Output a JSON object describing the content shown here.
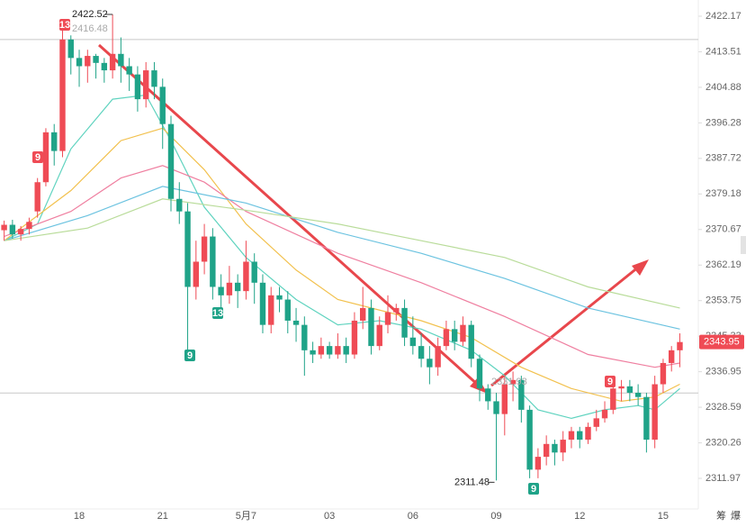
{
  "chart_data": {
    "type": "candlestick",
    "log_scale": true,
    "ylim": [
      2304.85,
      2426.13
    ],
    "yticks": [
      2311.97,
      2320.26,
      2328.59,
      2336.95,
      2345.33,
      2353.75,
      2362.19,
      2370.67,
      2379.18,
      2387.72,
      2396.28,
      2404.88,
      2413.51,
      2422.17
    ],
    "up_color": "#ef4b55",
    "down_color": "#1fa388",
    "categories": [
      null,
      null,
      null,
      null,
      null,
      null,
      null,
      null,
      null,
      "18",
      null,
      null,
      null,
      null,
      null,
      null,
      null,
      null,
      null,
      "21",
      null,
      null,
      null,
      null,
      null,
      null,
      null,
      null,
      null,
      "5月7",
      null,
      null,
      null,
      null,
      null,
      null,
      null,
      null,
      null,
      "03",
      null,
      null,
      null,
      null,
      null,
      null,
      null,
      null,
      null,
      "06",
      null,
      null,
      null,
      null,
      null,
      null,
      null,
      null,
      null,
      "09",
      null,
      null,
      null,
      null,
      null,
      null,
      null,
      null,
      null,
      "12",
      null,
      null,
      null,
      null,
      null,
      null,
      null,
      null,
      null,
      "15",
      null,
      null
    ],
    "open": [
      2370.5,
      2371.8,
      2369.5,
      2370.8,
      2375,
      2382,
      2394,
      2389.5,
      2416.5,
      2412,
      2410,
      2412.5,
      2410.8,
      2409,
      2413,
      2410,
      2408,
      2402,
      2409,
      2405,
      2396,
      2378,
      2375,
      2357,
      2363,
      2369,
      2357,
      2355,
      2358,
      2356,
      2363,
      2358,
      2348,
      2355,
      2354,
      2349,
      2348,
      2342,
      2341,
      2343,
      2341,
      2343,
      2341,
      2349,
      2352,
      2343,
      2348,
      2351,
      2352,
      2345,
      2343,
      2340,
      2338,
      2343,
      2347,
      2344,
      2348,
      2340,
      2333,
      2330,
      2327,
      2334,
      2335,
      2328,
      2314,
      2317,
      2320,
      2318,
      2321,
      2323,
      2321,
      2324,
      2326,
      2328,
      2333,
      2333.5,
      2332,
      2331,
      2321,
      2334,
      2339,
      2342
    ],
    "high": [
      2372.8,
      2373,
      2371.5,
      2373.5,
      2383,
      2395,
      2396,
      2419.5,
      2417.5,
      2414,
      2414,
      2413,
      2412,
      2422.52,
      2417,
      2412,
      2410,
      2411,
      2411,
      2407,
      2398,
      2382,
      2377,
      2368,
      2372,
      2371,
      2360,
      2362,
      2360,
      2368,
      2365,
      2360,
      2357,
      2357,
      2356,
      2352,
      2350,
      2344,
      2345,
      2344,
      2346,
      2345,
      2351,
      2357,
      2354,
      2350,
      2355,
      2353,
      2354,
      2350,
      2346,
      2343,
      2345,
      2349,
      2349,
      2350,
      2349,
      2341,
      2334,
      2332,
      2336,
      2337,
      2336,
      2329,
      2319,
      2322,
      2321,
      2323,
      2324,
      2324,
      2325,
      2328,
      2330,
      2335,
      2335,
      2335,
      2334,
      2332,
      2336,
      2340,
      2343,
      2346
    ],
    "low": [
      2368,
      2368.5,
      2368,
      2369.5,
      2373.5,
      2381,
      2386,
      2388,
      2408,
      2405,
      2406,
      2407,
      2406,
      2407,
      2406,
      2404,
      2399,
      2400,
      2402,
      2390,
      2375,
      2372,
      2341,
      2354,
      2360,
      2354,
      2352,
      2353,
      2352,
      2354,
      2353,
      2346,
      2346,
      2351,
      2346,
      2344,
      2336,
      2339,
      2340,
      2340,
      2340,
      2339,
      2340,
      2347,
      2341,
      2342,
      2346,
      2349,
      2343,
      2341,
      2338,
      2334,
      2336,
      2342,
      2342,
      2343,
      2338,
      2330,
      2328,
      2311.48,
      2322,
      2330,
      2325,
      2312,
      2312,
      2315,
      2315,
      2316,
      2319,
      2319,
      2320,
      2323,
      2325,
      2327,
      2330,
      2330,
      2329,
      2318,
      2319,
      2332,
      2337,
      2338
    ],
    "close": [
      2371.8,
      2369.5,
      2370.8,
      2372.5,
      2382,
      2394,
      2389.5,
      2416.5,
      2412,
      2410,
      2412.5,
      2410.8,
      2409,
      2413,
      2410,
      2408,
      2402,
      2409,
      2405,
      2396,
      2378,
      2375,
      2357,
      2363,
      2369,
      2357,
      2355,
      2358,
      2356,
      2363,
      2358,
      2348,
      2355,
      2354,
      2349,
      2348,
      2342,
      2341,
      2343,
      2341,
      2343,
      2341,
      2349,
      2352,
      2343,
      2348,
      2351,
      2352,
      2345,
      2343,
      2340,
      2338,
      2343,
      2347,
      2344,
      2348,
      2340,
      2333,
      2330,
      2327,
      2334,
      2335,
      2328,
      2314,
      2317,
      2320,
      2318,
      2321,
      2323,
      2321,
      2324,
      2326,
      2328,
      2333,
      2333.5,
      2332,
      2331,
      2321,
      2334,
      2339,
      2342,
      2343.95
    ],
    "ma_lines": [
      {
        "color": "#5fd3bf",
        "x": [
          0,
          4,
          8,
          13,
          17,
          20,
          24,
          29,
          35,
          40,
          45,
          50,
          56,
          60,
          64,
          68,
          72,
          76,
          78,
          81
        ],
        "values": [
          2368,
          2372,
          2390,
          2402,
          2403,
          2392,
          2376,
          2364,
          2354,
          2348,
          2349,
          2347,
          2342,
          2336,
          2328,
          2326,
          2328,
          2329,
          2328,
          2333
        ]
      },
      {
        "color": "#f2c14e",
        "x": [
          0,
          8,
          14,
          19,
          24,
          29,
          35,
          40,
          50,
          56,
          62,
          68,
          74,
          78,
          81
        ],
        "values": [
          2368,
          2380,
          2392,
          2395,
          2385,
          2372,
          2361,
          2354,
          2349,
          2345,
          2338,
          2333,
          2330,
          2331,
          2334
        ]
      },
      {
        "color": "#ef7fa0",
        "x": [
          0,
          8,
          14,
          19,
          24,
          29,
          40,
          50,
          60,
          70,
          78,
          81
        ],
        "values": [
          2369,
          2375,
          2383,
          2386,
          2382,
          2375,
          2365,
          2358,
          2350,
          2341,
          2338,
          2339
        ]
      },
      {
        "color": "#6cc3e0",
        "x": [
          0,
          10,
          19,
          29,
          40,
          50,
          60,
          70,
          81
        ],
        "values": [
          2368,
          2374,
          2381,
          2377,
          2370,
          2365,
          2359,
          2352,
          2347
        ]
      },
      {
        "color": "#b9dc9a",
        "x": [
          0,
          10,
          19,
          30,
          40,
          50,
          60,
          70,
          81
        ],
        "values": [
          2368,
          2371,
          2378,
          2375,
          2372,
          2368,
          2364,
          2357,
          2352
        ]
      }
    ],
    "price_lines": [
      2416.48,
      2331.93
    ],
    "markers": [
      {
        "text": "13",
        "color": "#ef4b55"
      },
      {
        "text": "9",
        "color": "#ef4b55"
      },
      {
        "text": "9",
        "color": "#1fa388"
      },
      {
        "text": "13",
        "color": "#1fa388"
      },
      {
        "text": "9",
        "color": "#1fa388"
      },
      {
        "text": "9",
        "color": "#ef4b55"
      }
    ],
    "corner_icons": [
      "筹",
      "爆"
    ]
  }
}
